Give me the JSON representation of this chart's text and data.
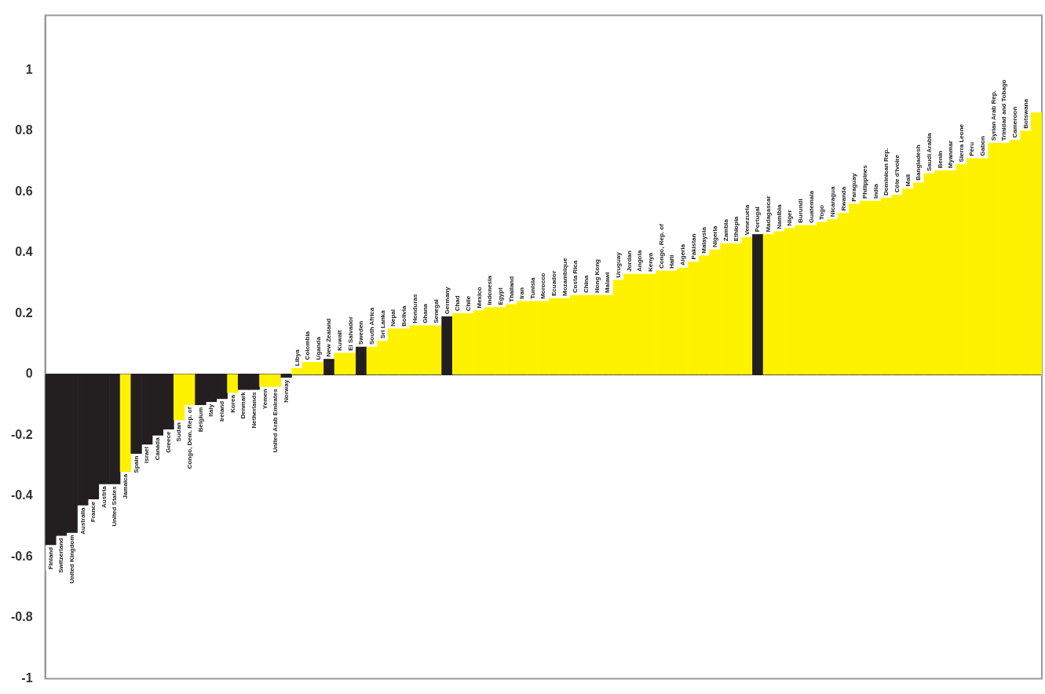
{
  "chart_data": {
    "type": "bar",
    "categories": [
      "Finland",
      "Switzerland",
      "United Kingdom",
      "Australia",
      "France",
      "Austria",
      "United States",
      "Jamaica",
      "Spain",
      "Israel",
      "Canada",
      "Greece",
      "Sudan",
      "Congo, Dem. Rep. of",
      "Belgium",
      "Italy",
      "Ireland",
      "Korea",
      "Denmark",
      "Netherlands",
      "Yemen",
      "United Arab Emirates",
      "Norway",
      "Libya",
      "Colombia",
      "Uganda",
      "New Zealand",
      "Kuwait",
      "El Salvador",
      "Sweden",
      "South Africa",
      "Sri Lanka",
      "Nepal",
      "Bolivia",
      "Honduras",
      "Ghana",
      "Senegal",
      "Germany",
      "Chad",
      "Chile",
      "Mexico",
      "Indonesia",
      "Egypt",
      "Thailand",
      "Iran",
      "Tunisia",
      "Morocco",
      "Ecuador",
      "Mozambique",
      "Costa Rica",
      "China",
      "Hong Kong",
      "Malawi",
      "Uruguay",
      "Jordan",
      "Angola",
      "Kenya",
      "Congo, Rep. of",
      "Haiti",
      "Algeria",
      "Pakistan",
      "Malaysia",
      "Nigeria",
      "Zambia",
      "Ethiopia",
      "Venezuela",
      "Portugal",
      "Madagascar",
      "Namibia",
      "Niger",
      "Burundi",
      "Guatemala",
      "Togo",
      "Nicaragua",
      "Rwanda",
      "Paraguay",
      "Philippines",
      "India",
      "Dominican Rep.",
      "Côte d'Ivoire",
      "Mali",
      "Bangladesh",
      "Saudi Arabia",
      "Benin",
      "Myanmar",
      "Sierra Leone",
      "Peru",
      "Gabon",
      "Syrian Arab Rep.",
      "Trinidad and Tobago",
      "Cameroon",
      "Botswana",
      null
    ],
    "values": [
      -0.56,
      -0.53,
      -0.52,
      -0.43,
      -0.41,
      -0.36,
      -0.36,
      -0.32,
      -0.26,
      -0.23,
      -0.2,
      -0.18,
      -0.15,
      -0.1,
      -0.1,
      -0.09,
      -0.08,
      -0.06,
      -0.05,
      -0.05,
      -0.04,
      -0.04,
      -0.01,
      0.02,
      0.04,
      0.04,
      0.05,
      0.07,
      0.07,
      0.09,
      0.09,
      0.11,
      0.15,
      0.15,
      0.16,
      0.16,
      0.16,
      0.19,
      0.2,
      0.2,
      0.21,
      0.22,
      0.22,
      0.23,
      0.24,
      0.24,
      0.24,
      0.25,
      0.25,
      0.26,
      0.26,
      0.26,
      0.26,
      0.31,
      0.33,
      0.33,
      0.33,
      0.34,
      0.34,
      0.35,
      0.37,
      0.39,
      0.41,
      0.43,
      0.43,
      0.45,
      0.46,
      0.46,
      0.47,
      0.48,
      0.49,
      0.49,
      0.5,
      0.51,
      0.53,
      0.56,
      0.57,
      0.57,
      0.58,
      0.59,
      0.61,
      0.63,
      0.66,
      0.67,
      0.67,
      0.69,
      0.71,
      0.71,
      0.76,
      0.76,
      0.77,
      0.8,
      0.86
    ],
    "colors": [
      "#231f20",
      "#231f20",
      "#231f20",
      "#231f20",
      "#231f20",
      "#231f20",
      "#231f20",
      "#fff200",
      "#231f20",
      "#231f20",
      "#231f20",
      "#231f20",
      "#fff200",
      "#fff200",
      "#231f20",
      "#231f20",
      "#231f20",
      "#fff200",
      "#231f20",
      "#231f20",
      "#fff200",
      "#fff200",
      "#231f20",
      "#fff200",
      "#fff200",
      "#fff200",
      "#231f20",
      "#fff200",
      "#fff200",
      "#231f20",
      "#fff200",
      "#fff200",
      "#fff200",
      "#fff200",
      "#fff200",
      "#fff200",
      "#fff200",
      "#231f20",
      "#fff200",
      "#fff200",
      "#fff200",
      "#fff200",
      "#fff200",
      "#fff200",
      "#fff200",
      "#fff200",
      "#fff200",
      "#fff200",
      "#fff200",
      "#fff200",
      "#fff200",
      "#fff200",
      "#fff200",
      "#fff200",
      "#fff200",
      "#fff200",
      "#fff200",
      "#fff200",
      "#fff200",
      "#fff200",
      "#fff200",
      "#fff200",
      "#fff200",
      "#fff200",
      "#fff200",
      "#fff200",
      "#231f20",
      "#fff200",
      "#fff200",
      "#fff200",
      "#fff200",
      "#fff200",
      "#fff200",
      "#fff200",
      "#fff200",
      "#fff200",
      "#fff200",
      "#fff200",
      "#fff200",
      "#fff200",
      "#fff200",
      "#fff200",
      "#fff200",
      "#fff200",
      "#fff200",
      "#fff200",
      "#fff200",
      "#fff200",
      "#fff200",
      "#fff200",
      "#fff200",
      "#fff200",
      "#fff200"
    ],
    "ylim": [
      -1,
      1.18
    ],
    "yticks": [
      -1,
      -0.8,
      -0.6,
      -0.4,
      -0.2,
      0,
      0.2,
      0.4,
      0.6,
      0.8,
      1
    ],
    "tick_labels": "y"
  }
}
